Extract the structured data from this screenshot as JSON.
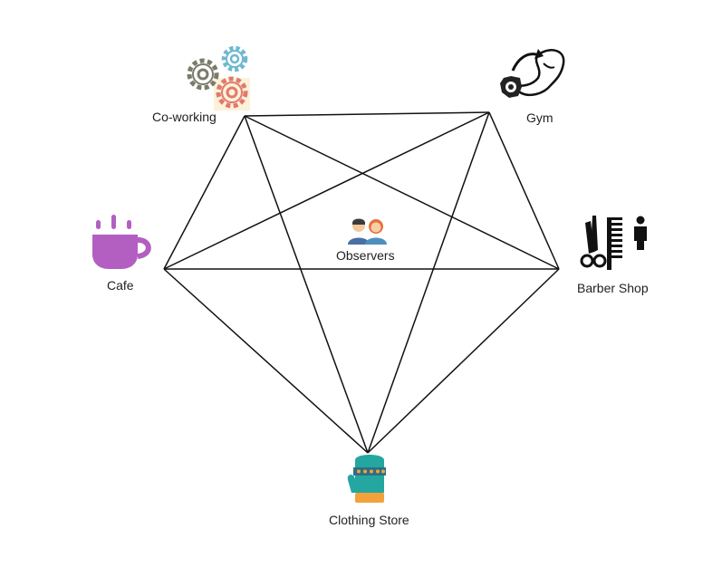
{
  "diagram": {
    "nodes": [
      {
        "id": "coworking",
        "label": "Co-working",
        "icon": "gears-icon"
      },
      {
        "id": "gym",
        "label": "Gym",
        "icon": "dumbbell-arm-icon"
      },
      {
        "id": "cafe",
        "label": "Cafe",
        "icon": "coffee-cup-icon"
      },
      {
        "id": "barber",
        "label": "Barber Shop",
        "icon": "scissors-comb-icon"
      },
      {
        "id": "clothing",
        "label": "Clothing Store",
        "icon": "mitten-icon"
      },
      {
        "id": "observers",
        "label": "Observers",
        "icon": "people-icon"
      }
    ],
    "edges": [
      [
        "coworking",
        "gym"
      ],
      [
        "coworking",
        "cafe"
      ],
      [
        "coworking",
        "barber"
      ],
      [
        "coworking",
        "clothing"
      ],
      [
        "gym",
        "cafe"
      ],
      [
        "gym",
        "barber"
      ],
      [
        "gym",
        "clothing"
      ],
      [
        "cafe",
        "barber"
      ],
      [
        "cafe",
        "clothing"
      ],
      [
        "barber",
        "clothing"
      ]
    ],
    "colors": {
      "edge": "#111111",
      "cafe_icon": "#b35fc2",
      "gear_gray": "#7b7b6a",
      "gear_blue": "#6fb8d0",
      "gear_red": "#e07a6e",
      "mitten_teal": "#23a7a0",
      "mitten_orange": "#f2a23a"
    }
  }
}
